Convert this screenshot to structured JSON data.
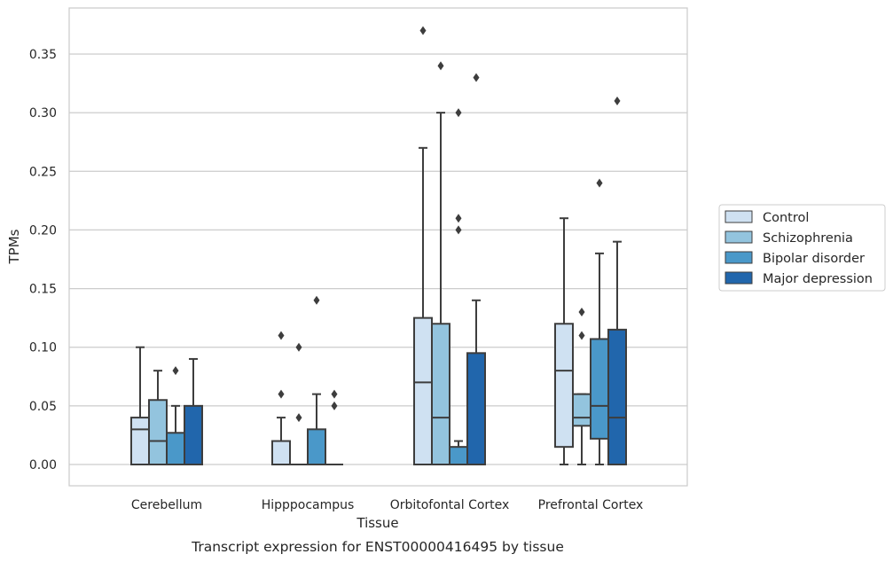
{
  "chart_data": {
    "type": "box",
    "title": "",
    "caption": "Transcript expression for ENST00000416495 by tissue",
    "xlabel": "Tissue",
    "ylabel": "TPMs",
    "ylim": [
      -0.018,
      0.388
    ],
    "yticks": [
      0.0,
      0.05,
      0.1,
      0.15,
      0.2,
      0.25,
      0.3,
      0.35
    ],
    "ytick_labels": [
      "0.00",
      "0.05",
      "0.10",
      "0.15",
      "0.20",
      "0.25",
      "0.30",
      "0.35"
    ],
    "grid": "horizontal",
    "legend_position": "right",
    "categories": [
      "Cerebellum",
      "Hipppocampus",
      "Orbitofontal Cortex",
      "Prefrontal Cortex"
    ],
    "series": [
      {
        "name": "Control",
        "color": "#cfe1f2",
        "boxes": [
          {
            "q1": 0.0,
            "median": 0.03,
            "q3": 0.04,
            "whisker_low": 0.0,
            "whisker_high": 0.1,
            "outliers": []
          },
          {
            "q1": 0.0,
            "median": 0.0,
            "q3": 0.02,
            "whisker_low": 0.0,
            "whisker_high": 0.04,
            "outliers": [
              0.06,
              0.11
            ]
          },
          {
            "q1": 0.0,
            "median": 0.07,
            "q3": 0.125,
            "whisker_low": 0.0,
            "whisker_high": 0.27,
            "outliers": [
              0.37
            ]
          },
          {
            "q1": 0.015,
            "median": 0.08,
            "q3": 0.12,
            "whisker_low": 0.0,
            "whisker_high": 0.21,
            "outliers": []
          }
        ]
      },
      {
        "name": "Schizophrenia",
        "color": "#93c4de",
        "boxes": [
          {
            "q1": 0.0,
            "median": 0.02,
            "q3": 0.055,
            "whisker_low": 0.0,
            "whisker_high": 0.08,
            "outliers": []
          },
          {
            "q1": 0.0,
            "median": 0.0,
            "q3": 0.0,
            "whisker_low": 0.0,
            "whisker_high": 0.0,
            "outliers": [
              0.04,
              0.1
            ]
          },
          {
            "q1": 0.0,
            "median": 0.04,
            "q3": 0.12,
            "whisker_low": 0.0,
            "whisker_high": 0.3,
            "outliers": [
              0.34
            ]
          },
          {
            "q1": 0.033,
            "median": 0.04,
            "q3": 0.06,
            "whisker_low": 0.0,
            "whisker_high": 0.06,
            "outliers": [
              0.11,
              0.13
            ]
          }
        ]
      },
      {
        "name": "Bipolar disorder",
        "color": "#4a98c9",
        "boxes": [
          {
            "q1": 0.0,
            "median": 0.0,
            "q3": 0.027,
            "whisker_low": 0.0,
            "whisker_high": 0.05,
            "outliers": [
              0.08
            ]
          },
          {
            "q1": 0.0,
            "median": 0.0,
            "q3": 0.03,
            "whisker_low": 0.0,
            "whisker_high": 0.06,
            "outliers": [
              0.14
            ]
          },
          {
            "q1": 0.0,
            "median": 0.0,
            "q3": 0.015,
            "whisker_low": 0.0,
            "whisker_high": 0.02,
            "outliers": [
              0.2,
              0.21,
              0.3
            ]
          },
          {
            "q1": 0.022,
            "median": 0.05,
            "q3": 0.107,
            "whisker_low": 0.0,
            "whisker_high": 0.18,
            "outliers": [
              0.24
            ]
          }
        ]
      },
      {
        "name": "Major depression",
        "color": "#2166ac",
        "boxes": [
          {
            "q1": 0.0,
            "median": 0.0,
            "q3": 0.05,
            "whisker_low": 0.0,
            "whisker_high": 0.09,
            "outliers": []
          },
          {
            "q1": 0.0,
            "median": 0.0,
            "q3": 0.0,
            "whisker_low": 0.0,
            "whisker_high": 0.0,
            "outliers": [
              0.05,
              0.06
            ]
          },
          {
            "q1": 0.0,
            "median": 0.0,
            "q3": 0.095,
            "whisker_low": 0.0,
            "whisker_high": 0.14,
            "outliers": [
              0.33
            ]
          },
          {
            "q1": 0.0,
            "median": 0.04,
            "q3": 0.115,
            "whisker_low": 0.0,
            "whisker_high": 0.19,
            "outliers": [
              0.31
            ]
          }
        ]
      }
    ]
  }
}
